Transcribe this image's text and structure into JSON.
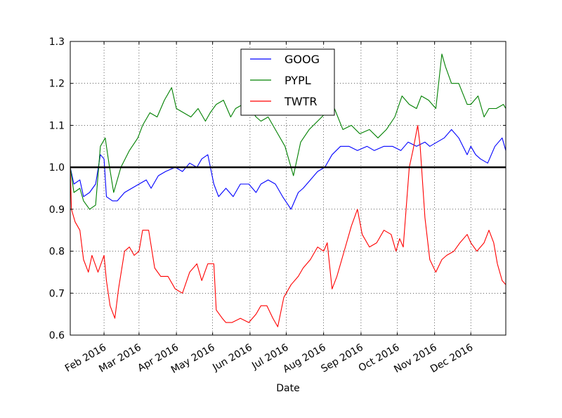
{
  "chart_data": {
    "type": "line",
    "xlabel": "Date",
    "ylabel": "",
    "ylim": [
      0.6,
      1.3
    ],
    "xlim": [
      "2016-01-04",
      "2016-12-30"
    ],
    "y_ticks": [
      "0.6",
      "0.7",
      "0.8",
      "0.9",
      "1.0",
      "1.1",
      "1.2",
      "1.3"
    ],
    "x_ticks": [
      {
        "date": "2016-02-01",
        "label": "Feb 2016"
      },
      {
        "date": "2016-03-01",
        "label": "Mar 2016"
      },
      {
        "date": "2016-04-01",
        "label": "Apr 2016"
      },
      {
        "date": "2016-05-01",
        "label": "May 2016"
      },
      {
        "date": "2016-06-01",
        "label": "Jun 2016"
      },
      {
        "date": "2016-07-01",
        "label": "Jul 2016"
      },
      {
        "date": "2016-08-01",
        "label": "Aug 2016"
      },
      {
        "date": "2016-09-01",
        "label": "Sep 2016"
      },
      {
        "date": "2016-10-01",
        "label": "Oct 2016"
      },
      {
        "date": "2016-11-01",
        "label": "Nov 2016"
      },
      {
        "date": "2016-12-01",
        "label": "Dec 2016"
      }
    ],
    "grid": true,
    "legend_position": "top-center",
    "reference_line": {
      "y": 1.0,
      "color": "#000000"
    },
    "series": [
      {
        "name": "GOOG",
        "color": "#0000ff",
        "points": [
          [
            "2016-01-04",
            1.0
          ],
          [
            "2016-01-07",
            0.96
          ],
          [
            "2016-01-12",
            0.97
          ],
          [
            "2016-01-15",
            0.93
          ],
          [
            "2016-01-20",
            0.94
          ],
          [
            "2016-01-25",
            0.96
          ],
          [
            "2016-01-29",
            1.03
          ],
          [
            "2016-02-01",
            1.02
          ],
          [
            "2016-02-03",
            0.93
          ],
          [
            "2016-02-08",
            0.92
          ],
          [
            "2016-02-12",
            0.92
          ],
          [
            "2016-02-18",
            0.94
          ],
          [
            "2016-02-24",
            0.95
          ],
          [
            "2016-03-01",
            0.96
          ],
          [
            "2016-03-07",
            0.97
          ],
          [
            "2016-03-11",
            0.95
          ],
          [
            "2016-03-17",
            0.98
          ],
          [
            "2016-03-23",
            0.99
          ],
          [
            "2016-03-31",
            1.0
          ],
          [
            "2016-04-06",
            0.99
          ],
          [
            "2016-04-12",
            1.01
          ],
          [
            "2016-04-18",
            1.0
          ],
          [
            "2016-04-22",
            1.02
          ],
          [
            "2016-04-27",
            1.03
          ],
          [
            "2016-05-02",
            0.96
          ],
          [
            "2016-05-06",
            0.93
          ],
          [
            "2016-05-12",
            0.95
          ],
          [
            "2016-05-18",
            0.93
          ],
          [
            "2016-05-24",
            0.96
          ],
          [
            "2016-05-31",
            0.96
          ],
          [
            "2016-06-06",
            0.94
          ],
          [
            "2016-06-10",
            0.96
          ],
          [
            "2016-06-16",
            0.97
          ],
          [
            "2016-06-22",
            0.96
          ],
          [
            "2016-06-28",
            0.93
          ],
          [
            "2016-07-05",
            0.9
          ],
          [
            "2016-07-11",
            0.94
          ],
          [
            "2016-07-15",
            0.95
          ],
          [
            "2016-07-21",
            0.97
          ],
          [
            "2016-07-27",
            0.99
          ],
          [
            "2016-08-02",
            1.0
          ],
          [
            "2016-08-08",
            1.03
          ],
          [
            "2016-08-15",
            1.05
          ],
          [
            "2016-08-22",
            1.05
          ],
          [
            "2016-08-29",
            1.04
          ],
          [
            "2016-09-06",
            1.05
          ],
          [
            "2016-09-12",
            1.04
          ],
          [
            "2016-09-20",
            1.05
          ],
          [
            "2016-09-27",
            1.05
          ],
          [
            "2016-10-04",
            1.04
          ],
          [
            "2016-10-10",
            1.06
          ],
          [
            "2016-10-17",
            1.05
          ],
          [
            "2016-10-24",
            1.06
          ],
          [
            "2016-10-28",
            1.05
          ],
          [
            "2016-11-03",
            1.06
          ],
          [
            "2016-11-09",
            1.07
          ],
          [
            "2016-11-15",
            1.09
          ],
          [
            "2016-11-21",
            1.07
          ],
          [
            "2016-11-28",
            1.03
          ],
          [
            "2016-12-01",
            1.05
          ],
          [
            "2016-12-05",
            1.03
          ],
          [
            "2016-12-09",
            1.02
          ],
          [
            "2016-12-15",
            1.01
          ],
          [
            "2016-12-21",
            1.05
          ],
          [
            "2016-12-27",
            1.07
          ],
          [
            "2016-12-30",
            1.04
          ]
        ]
      },
      {
        "name": "PYPL",
        "color": "#008000",
        "points": [
          [
            "2016-01-04",
            1.0
          ],
          [
            "2016-01-07",
            0.94
          ],
          [
            "2016-01-12",
            0.95
          ],
          [
            "2016-01-15",
            0.92
          ],
          [
            "2016-01-20",
            0.9
          ],
          [
            "2016-01-25",
            0.91
          ],
          [
            "2016-01-29",
            1.05
          ],
          [
            "2016-02-02",
            1.07
          ],
          [
            "2016-02-05",
            1.01
          ],
          [
            "2016-02-09",
            0.94
          ],
          [
            "2016-02-15",
            1.0
          ],
          [
            "2016-02-22",
            1.04
          ],
          [
            "2016-02-29",
            1.07
          ],
          [
            "2016-03-04",
            1.1
          ],
          [
            "2016-03-10",
            1.13
          ],
          [
            "2016-03-16",
            1.12
          ],
          [
            "2016-03-22",
            1.16
          ],
          [
            "2016-03-28",
            1.19
          ],
          [
            "2016-04-01",
            1.14
          ],
          [
            "2016-04-07",
            1.13
          ],
          [
            "2016-04-13",
            1.12
          ],
          [
            "2016-04-19",
            1.14
          ],
          [
            "2016-04-25",
            1.11
          ],
          [
            "2016-04-29",
            1.13
          ],
          [
            "2016-05-04",
            1.15
          ],
          [
            "2016-05-10",
            1.16
          ],
          [
            "2016-05-16",
            1.12
          ],
          [
            "2016-05-20",
            1.14
          ],
          [
            "2016-05-26",
            1.15
          ],
          [
            "2016-06-01",
            1.14
          ],
          [
            "2016-06-06",
            1.12
          ],
          [
            "2016-06-10",
            1.11
          ],
          [
            "2016-06-16",
            1.12
          ],
          [
            "2016-06-24",
            1.08
          ],
          [
            "2016-06-30",
            1.05
          ],
          [
            "2016-07-07",
            0.98
          ],
          [
            "2016-07-13",
            1.06
          ],
          [
            "2016-07-20",
            1.09
          ],
          [
            "2016-07-27",
            1.11
          ],
          [
            "2016-08-03",
            1.13
          ],
          [
            "2016-08-10",
            1.14
          ],
          [
            "2016-08-17",
            1.09
          ],
          [
            "2016-08-24",
            1.1
          ],
          [
            "2016-08-31",
            1.08
          ],
          [
            "2016-09-08",
            1.09
          ],
          [
            "2016-09-15",
            1.07
          ],
          [
            "2016-09-22",
            1.09
          ],
          [
            "2016-09-29",
            1.12
          ],
          [
            "2016-10-05",
            1.17
          ],
          [
            "2016-10-11",
            1.15
          ],
          [
            "2016-10-17",
            1.14
          ],
          [
            "2016-10-21",
            1.17
          ],
          [
            "2016-10-27",
            1.16
          ],
          [
            "2016-11-02",
            1.14
          ],
          [
            "2016-11-07",
            1.27
          ],
          [
            "2016-11-10",
            1.24
          ],
          [
            "2016-11-15",
            1.2
          ],
          [
            "2016-11-21",
            1.2
          ],
          [
            "2016-11-28",
            1.15
          ],
          [
            "2016-12-01",
            1.15
          ],
          [
            "2016-12-07",
            1.17
          ],
          [
            "2016-12-12",
            1.12
          ],
          [
            "2016-12-16",
            1.14
          ],
          [
            "2016-12-22",
            1.14
          ],
          [
            "2016-12-28",
            1.15
          ],
          [
            "2016-12-30",
            1.14
          ]
        ]
      },
      {
        "name": "TWTR",
        "color": "#ff0000",
        "points": [
          [
            "2016-01-04",
            1.0
          ],
          [
            "2016-01-05",
            0.9
          ],
          [
            "2016-01-08",
            0.87
          ],
          [
            "2016-01-12",
            0.85
          ],
          [
            "2016-01-15",
            0.78
          ],
          [
            "2016-01-19",
            0.75
          ],
          [
            "2016-01-22",
            0.79
          ],
          [
            "2016-01-27",
            0.75
          ],
          [
            "2016-02-01",
            0.79
          ],
          [
            "2016-02-03",
            0.73
          ],
          [
            "2016-02-06",
            0.67
          ],
          [
            "2016-02-10",
            0.64
          ],
          [
            "2016-02-13",
            0.71
          ],
          [
            "2016-02-18",
            0.8
          ],
          [
            "2016-02-22",
            0.81
          ],
          [
            "2016-02-26",
            0.79
          ],
          [
            "2016-03-01",
            0.8
          ],
          [
            "2016-03-04",
            0.85
          ],
          [
            "2016-03-09",
            0.85
          ],
          [
            "2016-03-14",
            0.76
          ],
          [
            "2016-03-19",
            0.74
          ],
          [
            "2016-03-25",
            0.74
          ],
          [
            "2016-03-31",
            0.71
          ],
          [
            "2016-04-06",
            0.7
          ],
          [
            "2016-04-12",
            0.75
          ],
          [
            "2016-04-18",
            0.77
          ],
          [
            "2016-04-22",
            0.73
          ],
          [
            "2016-04-27",
            0.77
          ],
          [
            "2016-05-02",
            0.77
          ],
          [
            "2016-05-04",
            0.66
          ],
          [
            "2016-05-09",
            0.64
          ],
          [
            "2016-05-12",
            0.63
          ],
          [
            "2016-05-17",
            0.63
          ],
          [
            "2016-05-24",
            0.64
          ],
          [
            "2016-05-31",
            0.63
          ],
          [
            "2016-06-06",
            0.65
          ],
          [
            "2016-06-10",
            0.67
          ],
          [
            "2016-06-15",
            0.67
          ],
          [
            "2016-06-20",
            0.64
          ],
          [
            "2016-06-24",
            0.62
          ],
          [
            "2016-06-29",
            0.69
          ],
          [
            "2016-07-05",
            0.72
          ],
          [
            "2016-07-11",
            0.74
          ],
          [
            "2016-07-15",
            0.76
          ],
          [
            "2016-07-21",
            0.78
          ],
          [
            "2016-07-27",
            0.81
          ],
          [
            "2016-08-01",
            0.8
          ],
          [
            "2016-08-04",
            0.82
          ],
          [
            "2016-08-08",
            0.71
          ],
          [
            "2016-08-12",
            0.74
          ],
          [
            "2016-08-18",
            0.8
          ],
          [
            "2016-08-24",
            0.86
          ],
          [
            "2016-08-29",
            0.9
          ],
          [
            "2016-09-02",
            0.84
          ],
          [
            "2016-09-08",
            0.81
          ],
          [
            "2016-09-14",
            0.82
          ],
          [
            "2016-09-20",
            0.85
          ],
          [
            "2016-09-26",
            0.84
          ],
          [
            "2016-09-30",
            0.8
          ],
          [
            "2016-10-03",
            0.83
          ],
          [
            "2016-10-06",
            0.81
          ],
          [
            "2016-10-11",
            1.0
          ],
          [
            "2016-10-14",
            1.04
          ],
          [
            "2016-10-18",
            1.1
          ],
          [
            "2016-10-20",
            1.05
          ],
          [
            "2016-10-24",
            0.88
          ],
          [
            "2016-10-28",
            0.78
          ],
          [
            "2016-11-02",
            0.75
          ],
          [
            "2016-11-07",
            0.78
          ],
          [
            "2016-11-11",
            0.79
          ],
          [
            "2016-11-17",
            0.8
          ],
          [
            "2016-11-22",
            0.82
          ],
          [
            "2016-11-28",
            0.84
          ],
          [
            "2016-12-01",
            0.82
          ],
          [
            "2016-12-06",
            0.8
          ],
          [
            "2016-12-12",
            0.82
          ],
          [
            "2016-12-16",
            0.85
          ],
          [
            "2016-12-20",
            0.82
          ],
          [
            "2016-12-23",
            0.77
          ],
          [
            "2016-12-27",
            0.73
          ],
          [
            "2016-12-30",
            0.72
          ]
        ]
      }
    ]
  }
}
